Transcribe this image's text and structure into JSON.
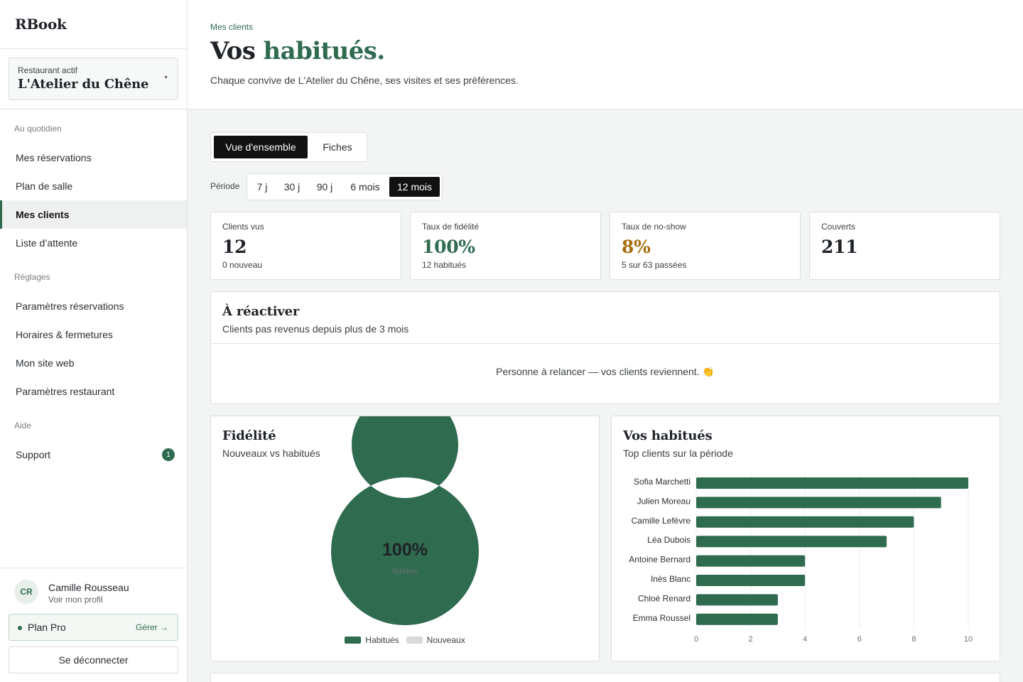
{
  "app": {
    "name": "RBook"
  },
  "restaurant": {
    "label": "Restaurant actif",
    "name": "L'Atelier du Chêne"
  },
  "nav": {
    "daily_title": "Au quotidien",
    "daily": [
      {
        "label": "Mes réservations",
        "active": false
      },
      {
        "label": "Plan de salle",
        "active": false
      },
      {
        "label": "Mes clients",
        "active": true
      },
      {
        "label": "Liste d’attente",
        "active": false
      }
    ],
    "settings_title": "Réglages",
    "settings": [
      {
        "label": "Paramètres réservations"
      },
      {
        "label": "Horaires & fermetures"
      },
      {
        "label": "Mon site web"
      },
      {
        "label": "Paramètres restaurant"
      }
    ],
    "help_title": "Aide",
    "support": {
      "label": "Support",
      "badge": "1"
    }
  },
  "user": {
    "initials": "CR",
    "name": "Camille Rousseau",
    "profile_link": "Voir mon profil"
  },
  "plan": {
    "label": "Plan Pro",
    "manage": "Gérer →"
  },
  "logout": "Se déconnecter",
  "header": {
    "breadcrumb": "Mes clients",
    "title_plain": "Vos ",
    "title_accent": "habitués.",
    "subtitle": "Chaque convive de L'Atelier du Chêne, ses visites et ses préférences."
  },
  "tabs": [
    {
      "label": "Vue d'ensemble",
      "active": true
    },
    {
      "label": "Fiches",
      "active": false
    }
  ],
  "period": {
    "label": "Période",
    "options": [
      {
        "label": "7 j",
        "active": false
      },
      {
        "label": "30 j",
        "active": false
      },
      {
        "label": "90 j",
        "active": false
      },
      {
        "label": "6 mois",
        "active": false
      },
      {
        "label": "12 mois",
        "active": true
      }
    ]
  },
  "kpis": [
    {
      "label": "Clients vus",
      "value": "12",
      "sub": "0 nouveau",
      "color": "#1f2328"
    },
    {
      "label": "Taux de fidélité",
      "value": "100%",
      "sub": "12 habitués",
      "color": "#2f6b4f"
    },
    {
      "label": "Taux de no-show",
      "value": "8%",
      "sub": "5 sur 63 passées",
      "color": "#a66c0a"
    },
    {
      "label": "Couverts",
      "value": "211",
      "sub": "",
      "color": "#1f2328"
    }
  ],
  "reactivate": {
    "title": "À réactiver",
    "subtitle": "Clients pas revenus depuis plus de 3 mois",
    "empty": "Personne à relancer — vos clients reviennent. 👏"
  },
  "loyalty": {
    "title": "Fidélité",
    "subtitle": "Nouveaux vs habitués",
    "center_value": "100%",
    "center_label": "fidèles"
  },
  "top_clients": {
    "title": "Vos habitués",
    "subtitle": "Top clients sur la période"
  },
  "colors": {
    "accent": "#2f6b4f",
    "new_series": "#d7d9da",
    "warning": "#a66c0a"
  },
  "chart_data": [
    {
      "type": "pie",
      "categories": [
        "Habitués",
        "Nouveaux"
      ],
      "values": [
        100,
        0
      ],
      "legend": "bottom"
    },
    {
      "type": "bar",
      "orientation": "horizontal",
      "categories": [
        "Sofia Marchetti",
        "Julien Moreau",
        "Camille Lefèvre",
        "Léa Dubois",
        "Antoine Bernard",
        "Inès Blanc",
        "Chloé Renard",
        "Emma Roussel"
      ],
      "values": [
        10,
        9,
        8,
        7,
        4,
        4,
        3,
        3
      ],
      "xlim": [
        0,
        10
      ],
      "xticks": [
        0,
        2,
        4,
        6,
        8,
        10
      ],
      "grid": true
    }
  ]
}
